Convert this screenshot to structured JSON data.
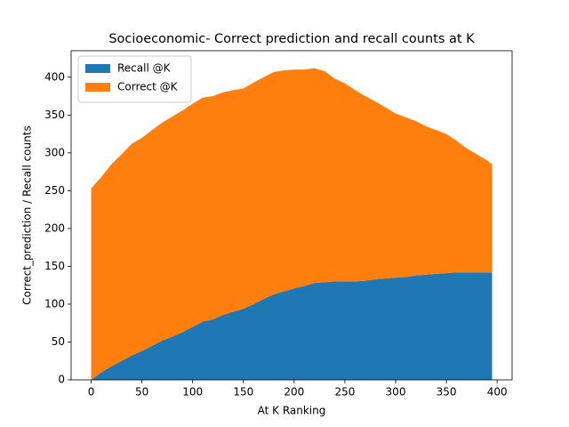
{
  "chart_data": {
    "type": "stacked_area",
    "title": "Socioeconomic- Correct prediction and recall counts at K",
    "x_label": "At K Ranking",
    "y_label": "Correct_prediction / Recall counts",
    "x": [
      0,
      10,
      20,
      30,
      40,
      50,
      60,
      70,
      80,
      90,
      100,
      110,
      120,
      130,
      140,
      150,
      160,
      170,
      180,
      190,
      200,
      210,
      220,
      230,
      240,
      250,
      260,
      270,
      280,
      290,
      300,
      310,
      320,
      330,
      340,
      350,
      360,
      370,
      380,
      390,
      395
    ],
    "series": [
      {
        "name": "Recall @K",
        "color": "#1f77b4",
        "values": [
          0,
          10,
          18,
          25,
          32,
          38,
          45,
          52,
          57,
          63,
          70,
          77,
          80,
          86,
          90,
          94,
          100,
          107,
          113,
          117,
          121,
          124,
          128,
          129,
          130,
          130,
          130,
          131,
          133,
          134,
          135,
          136,
          138,
          139,
          140,
          141,
          142,
          142,
          142,
          142,
          142
        ]
      },
      {
        "name": "Correct @K",
        "color": "#ff7f0e",
        "values": [
          253,
          258,
          267,
          273,
          280,
          282,
          285,
          288,
          291,
          293,
          295,
          296,
          295,
          294,
          293,
          291,
          293,
          293,
          294,
          292,
          289,
          286,
          284,
          279,
          268,
          262,
          253,
          244,
          235,
          226,
          217,
          211,
          204,
          196,
          190,
          184,
          174,
          164,
          156,
          148,
          143
        ]
      }
    ],
    "xlim": [
      -19.75,
      414.75
    ],
    "ylim": [
      0,
      435
    ],
    "xticks": [
      0,
      50,
      100,
      150,
      200,
      250,
      300,
      350,
      400
    ],
    "yticks": [
      0,
      50,
      100,
      150,
      200,
      250,
      300,
      350,
      400
    ],
    "legend": "upper left"
  }
}
